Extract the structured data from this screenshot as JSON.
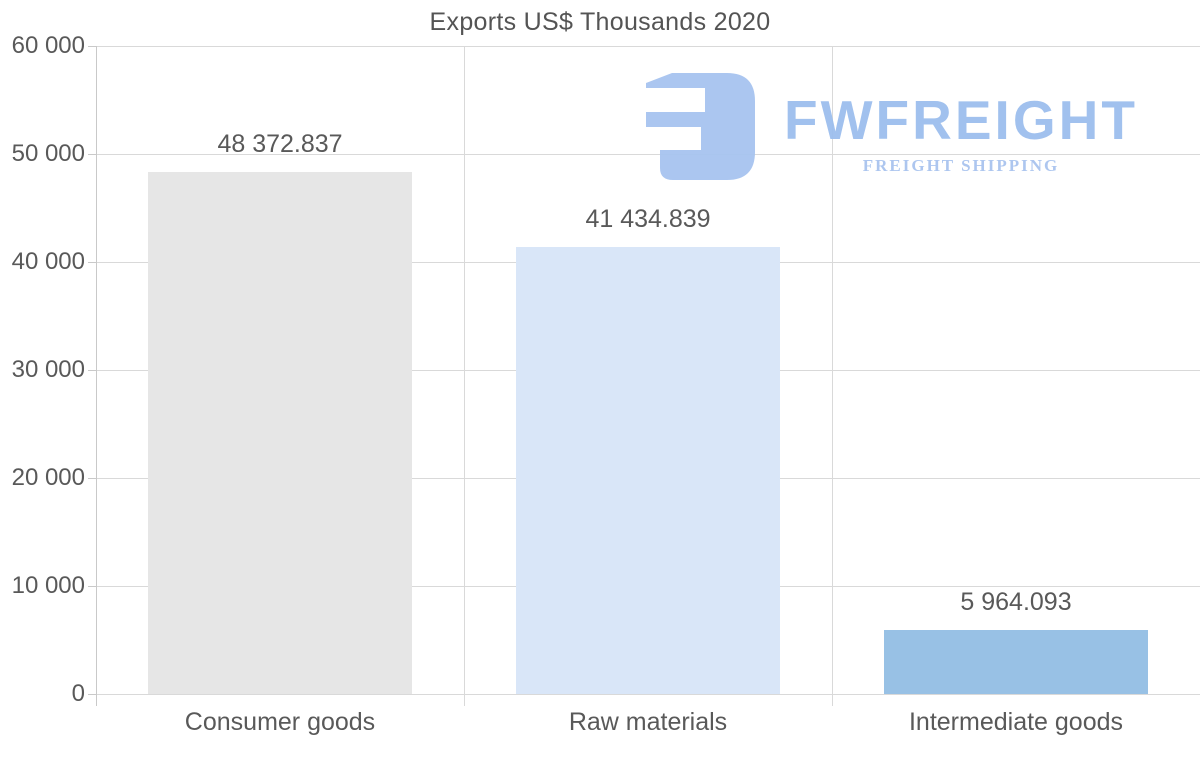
{
  "chart_data": {
    "type": "bar",
    "title": "Exports US$ Thousands 2020",
    "categories": [
      "Consumer goods",
      "Raw materials",
      "Intermediate goods"
    ],
    "values": [
      48372.837,
      41434.839,
      5964.093
    ],
    "value_labels": [
      "48 372.837",
      "41 434.839",
      "5 964.093"
    ],
    "bar_colors": [
      "#e6e6e6",
      "#d9e6f8",
      "#98c1e5"
    ],
    "xlabel": "",
    "ylabel": "",
    "ylim": [
      0,
      60000
    ],
    "yticks": [
      0,
      10000,
      20000,
      30000,
      40000,
      50000,
      60000
    ],
    "ytick_labels": [
      "0",
      "10 000",
      "20 000",
      "30 000",
      "40 000",
      "50 000",
      "60 000"
    ],
    "grid": true,
    "legend_position": "none"
  },
  "watermark": {
    "brand": "FWFREIGHT",
    "tagline": "FREIGHT SHIPPING",
    "logo_icon": "fwfreight-glyph",
    "brand_color": "#9cbeee",
    "tagline_color": "#a9c4ef",
    "icon_color": "#a7c4f0"
  },
  "colors": {
    "background": "#ffffff",
    "text": "#595959",
    "title_text": "#545454",
    "gridline": "#d9d9d9",
    "axis": "#c9c9c9"
  }
}
